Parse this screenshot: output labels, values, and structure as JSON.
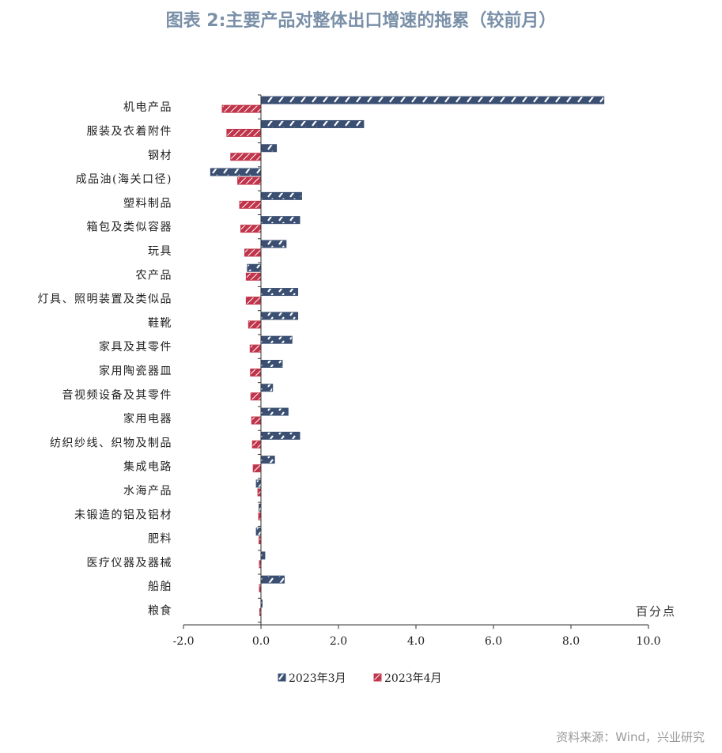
{
  "title": "图表 2:主要产品对整体出口增速的拖累（较前月）",
  "source": "资料来源：Wind，兴业研究",
  "colors": {
    "series1": "#3a4f72",
    "series2": "#c0354b",
    "axis": "#333333",
    "title": "#7a90a8"
  },
  "chart_data": {
    "type": "bar",
    "orientation": "horizontal",
    "unit_label": "百分点",
    "xlim": [
      -2,
      10
    ],
    "xticks": [
      "-2.0",
      "0.0",
      "2.0",
      "4.0",
      "6.0",
      "8.0",
      "10.0"
    ],
    "xtick_values": [
      -2,
      0,
      2,
      4,
      6,
      8,
      10
    ],
    "grid": false,
    "legend_position": "bottom",
    "categories": [
      "机电产品",
      "服装及衣着附件",
      "钢材",
      "成品油(海关口径)",
      "塑料制品",
      "箱包及类似容器",
      "玩具",
      "农产品",
      "灯具、照明装置及类似品",
      "鞋靴",
      "家具及其零件",
      "家用陶瓷器皿",
      "音视频设备及其零件",
      "家用电器",
      "纺织纱线、织物及制品",
      "集成电路",
      "水海产品",
      "未锻造的铝及铝材",
      "肥料",
      "医疗仪器及器械",
      "船舶",
      "粮食"
    ],
    "series": [
      {
        "name": "2023年3月",
        "values": [
          8.85,
          2.65,
          0.4,
          -1.3,
          1.05,
          1.0,
          0.65,
          -0.35,
          0.95,
          0.95,
          0.8,
          0.55,
          0.3,
          0.7,
          1.0,
          0.35,
          -0.12,
          -0.05,
          -0.12,
          0.1,
          0.6,
          0.03
        ]
      },
      {
        "name": "2023年4月",
        "values": [
          -1.0,
          -0.88,
          -0.78,
          -0.6,
          -0.55,
          -0.52,
          -0.42,
          -0.38,
          -0.38,
          -0.32,
          -0.28,
          -0.27,
          -0.26,
          -0.24,
          -0.22,
          -0.2,
          -0.08,
          -0.06,
          -0.05,
          -0.04,
          -0.04,
          -0.03
        ]
      }
    ]
  }
}
